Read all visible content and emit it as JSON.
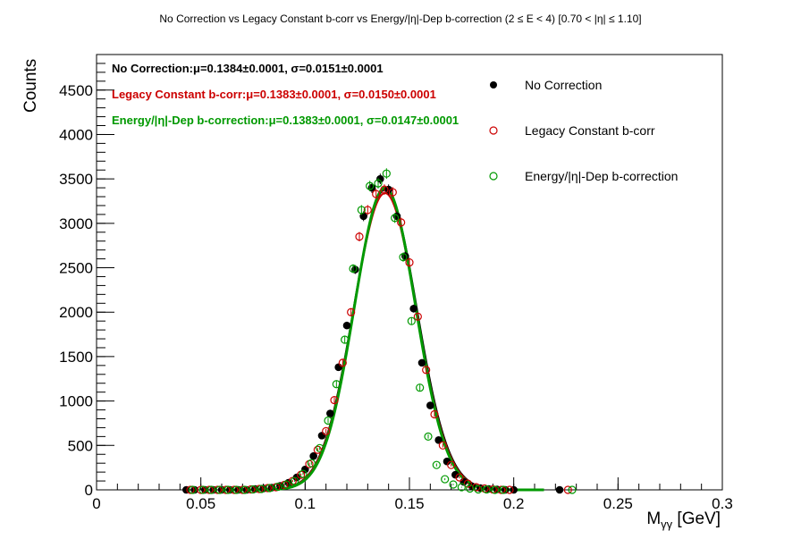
{
  "chart_data": {
    "type": "scatter",
    "title": "No Correction vs Legacy Constant b-corr vs Energy/|η|-Dep b-correction   (2 ≤ E < 4)   [0.70 < |η| ≤ 1.10]",
    "xlabel_main": "M",
    "xlabel_sub": "γγ",
    "xlabel_unit": " [GeV]",
    "ylabel": "Counts",
    "xlim": [
      0,
      0.3
    ],
    "ylim": [
      0,
      4900
    ],
    "x_ticks": [
      0,
      0.05,
      0.1,
      0.15,
      0.2,
      0.25,
      0.3
    ],
    "x_tick_labels": [
      "0",
      "0.05",
      "0.1",
      "0.15",
      "0.2",
      "0.25",
      "0.3"
    ],
    "y_ticks": [
      0,
      500,
      1000,
      1500,
      2000,
      2500,
      3000,
      3500,
      4000,
      4500
    ],
    "y_tick_labels": [
      "0",
      "500",
      "1000",
      "1500",
      "2000",
      "2500",
      "3000",
      "3500",
      "4000",
      "4500"
    ],
    "grid": false,
    "legend_position": "top-right",
    "fit_annotations": [
      {
        "label": "No Correction:",
        "text": "μ=0.1384±0.0001, σ=0.0151±0.0001",
        "color": "#000000"
      },
      {
        "label": "Legacy Constant b-corr:",
        "text": "μ=0.1383±0.0001, σ=0.0150±0.0001",
        "color": "#cc0000"
      },
      {
        "label": "Energy/|η|-Dep b-correction:",
        "text": "μ=0.1383±0.0001, σ=0.0147±0.0001",
        "color": "#009900"
      }
    ],
    "series": [
      {
        "name": "No Correction",
        "marker": "filled-circle",
        "color": "#000000",
        "fit": {
          "mu": 0.1384,
          "sigma": 0.0151,
          "amp": 3380
        },
        "x": [
          0.043,
          0.047,
          0.052,
          0.056,
          0.06,
          0.064,
          0.068,
          0.072,
          0.076,
          0.08,
          0.084,
          0.088,
          0.092,
          0.096,
          0.1,
          0.104,
          0.108,
          0.112,
          0.116,
          0.12,
          0.124,
          0.128,
          0.132,
          0.136,
          0.14,
          0.144,
          0.148,
          0.152,
          0.156,
          0.16,
          0.164,
          0.168,
          0.172,
          0.176,
          0.18,
          0.184,
          0.188,
          0.192,
          0.196,
          0.2,
          0.222
        ],
        "y": [
          0,
          0,
          0,
          0,
          0,
          0,
          0,
          0,
          10,
          15,
          25,
          45,
          80,
          140,
          230,
          380,
          610,
          860,
          1380,
          1850,
          2480,
          3080,
          3400,
          3500,
          3380,
          3080,
          2630,
          2040,
          1430,
          950,
          560,
          320,
          170,
          90,
          40,
          20,
          10,
          5,
          0,
          0,
          0
        ]
      },
      {
        "name": "Legacy Constant b-corr",
        "marker": "open-circle",
        "color": "#cc0000",
        "fit": {
          "mu": 0.1383,
          "sigma": 0.015,
          "amp": 3340
        },
        "x": [
          0.045,
          0.05,
          0.054,
          0.058,
          0.062,
          0.066,
          0.07,
          0.074,
          0.078,
          0.082,
          0.086,
          0.09,
          0.094,
          0.098,
          0.102,
          0.106,
          0.11,
          0.114,
          0.118,
          0.122,
          0.126,
          0.13,
          0.134,
          0.138,
          0.142,
          0.146,
          0.15,
          0.154,
          0.158,
          0.162,
          0.166,
          0.17,
          0.174,
          0.178,
          0.182,
          0.186,
          0.19,
          0.194,
          0.198,
          0.226
        ],
        "y": [
          0,
          0,
          0,
          0,
          0,
          0,
          0,
          5,
          10,
          20,
          30,
          55,
          100,
          170,
          290,
          450,
          660,
          1010,
          1430,
          2000,
          2850,
          3150,
          3330,
          3380,
          3350,
          3010,
          2560,
          1950,
          1350,
          850,
          500,
          280,
          140,
          70,
          30,
          15,
          5,
          0,
          0,
          0
        ]
      },
      {
        "name": "Energy/|η|-Dep b-correction",
        "marker": "open-circle",
        "color": "#009900",
        "fit": {
          "mu": 0.1383,
          "sigma": 0.0147,
          "amp": 3400
        },
        "x": [
          0.046,
          0.051,
          0.055,
          0.059,
          0.063,
          0.067,
          0.071,
          0.075,
          0.079,
          0.083,
          0.087,
          0.091,
          0.095,
          0.099,
          0.103,
          0.107,
          0.111,
          0.115,
          0.119,
          0.123,
          0.127,
          0.131,
          0.135,
          0.139,
          0.143,
          0.147,
          0.151,
          0.155,
          0.159,
          0.163,
          0.167,
          0.171,
          0.175,
          0.179,
          0.183,
          0.187,
          0.191,
          0.195,
          0.228
        ],
        "y": [
          0,
          0,
          0,
          0,
          0,
          0,
          0,
          5,
          10,
          20,
          35,
          60,
          100,
          180,
          300,
          470,
          780,
          1190,
          1690,
          2490,
          3150,
          3420,
          3450,
          3560,
          3060,
          2620,
          1900,
          1150,
          600,
          280,
          120,
          60,
          30,
          15,
          5,
          5,
          0,
          0,
          0
        ]
      }
    ]
  }
}
